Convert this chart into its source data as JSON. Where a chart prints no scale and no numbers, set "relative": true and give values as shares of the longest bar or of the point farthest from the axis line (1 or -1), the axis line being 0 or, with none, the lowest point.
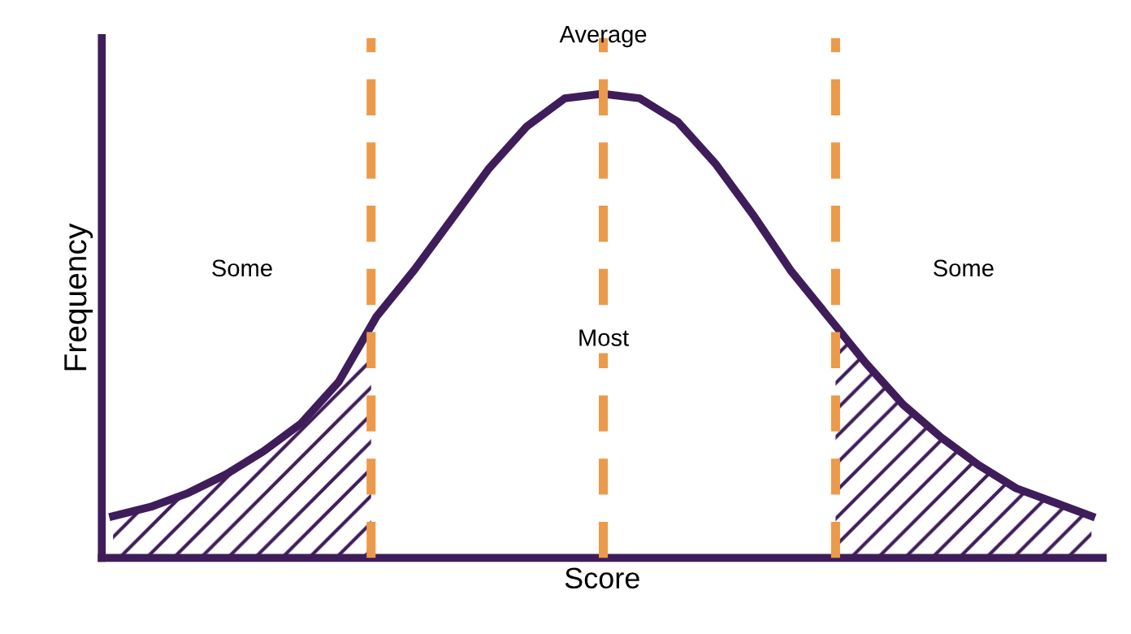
{
  "chart_data": {
    "type": "line",
    "relative": true,
    "xlabel": "Score",
    "ylabel": "Frequency",
    "categories": [
      null,
      null,
      null,
      null,
      null,
      null,
      null,
      null,
      null,
      null,
      null,
      null,
      null,
      null,
      null,
      null,
      null,
      null,
      null,
      null,
      null,
      null,
      null,
      null,
      null,
      null,
      null
    ],
    "series": [
      {
        "color": "#3f1d5a",
        "values": [
          0.09,
          0.11,
          0.14,
          0.18,
          0.23,
          0.29,
          0.38,
          0.52,
          0.62,
          0.73,
          0.84,
          0.93,
          0.99,
          1.0,
          0.99,
          0.94,
          0.85,
          0.74,
          0.62,
          0.52,
          0.42,
          0.33,
          0.26,
          0.2,
          0.15,
          0.12,
          0.09
        ]
      }
    ],
    "legend": false,
    "marker": "none",
    "line_style": "solid",
    "annotations": [
      "Average",
      "Some",
      "Most",
      "Some"
    ]
  }
}
